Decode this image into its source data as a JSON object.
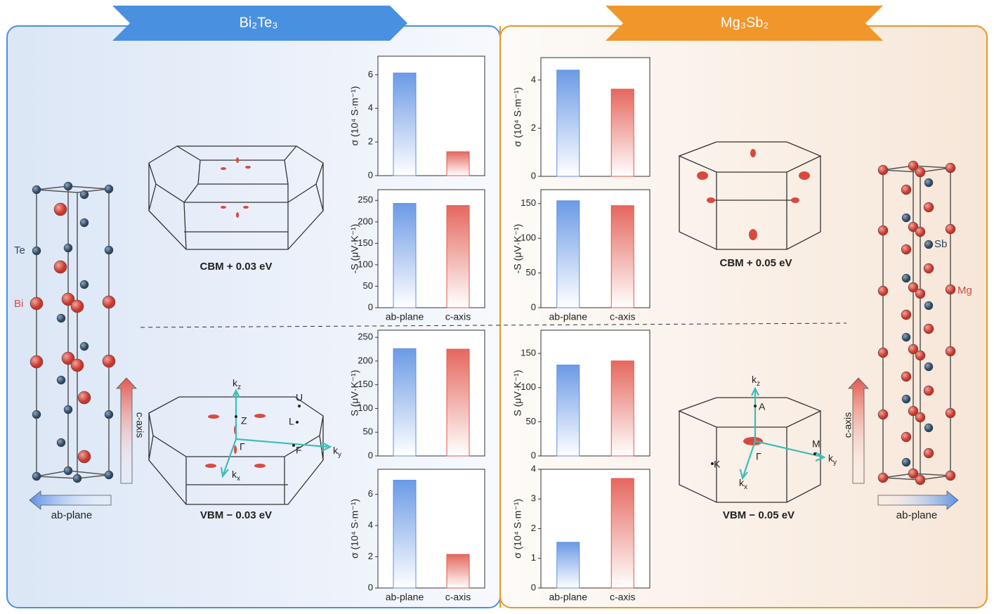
{
  "bi2te3": {
    "title": "Bi₂Te₃",
    "atom_labels": [
      "Te",
      "Bi"
    ],
    "c_axis": "c-axis",
    "ab_plane": "ab-plane",
    "cbm": "CBM + 0.03 eV",
    "vbm": "VBM − 0.03 eV",
    "bz_points": [
      "Z",
      "U",
      "L",
      "Γ",
      "F"
    ],
    "k_axes": [
      {
        "base": "k",
        "sub": "z"
      },
      {
        "base": "k",
        "sub": "y"
      },
      {
        "base": "k",
        "sub": "x"
      }
    ]
  },
  "mg3sb2": {
    "title": "Mg₃Sb₂",
    "atom_labels": [
      "Sb",
      "Mg"
    ],
    "c_axis": "c-axis",
    "ab_plane": "ab-plane",
    "cbm": "CBM + 0.05 eV",
    "vbm": "VBM − 0.05 eV",
    "bz_points": [
      "A",
      "M",
      "Γ",
      "K"
    ],
    "k_axes": [
      {
        "base": "k",
        "sub": "z"
      },
      {
        "base": "k",
        "sub": "y"
      },
      {
        "base": "k",
        "sub": "x"
      }
    ]
  },
  "chart_data": [
    {
      "type": "bar",
      "ylabel": "σ (10⁴ S·m⁻¹)",
      "categories": [
        null,
        null
      ],
      "values": [
        6.1,
        1.42
      ],
      "colors": [
        "#5b8fe3",
        "#e2574c"
      ],
      "ylim": [
        0,
        7.1
      ],
      "yticks": [
        0,
        2,
        4,
        6
      ]
    },
    {
      "type": "bar",
      "ylabel": "-S (μV·K⁻¹)",
      "categories": [
        "ab-plane",
        "c-axis"
      ],
      "values": [
        243,
        238
      ],
      "colors": [
        "#5b8fe3",
        "#e2574c"
      ],
      "ylim": [
        0,
        275
      ],
      "yticks": [
        0,
        50,
        100,
        150,
        200,
        250
      ]
    },
    {
      "type": "bar",
      "ylabel": "S (μV·K⁻¹)",
      "categories": [
        null,
        null
      ],
      "values": [
        226,
        225
      ],
      "colors": [
        "#5b8fe3",
        "#e2574c"
      ],
      "ylim": [
        0,
        265
      ],
      "yticks": [
        0,
        50,
        100,
        150,
        200,
        250
      ]
    },
    {
      "type": "bar",
      "ylabel": "σ (10⁴ S·m⁻¹)",
      "categories": [
        "ab-plane",
        "c-axis"
      ],
      "values": [
        6.9,
        2.15
      ],
      "colors": [
        "#5b8fe3",
        "#e2574c"
      ],
      "ylim": [
        0,
        7.6
      ],
      "yticks": [
        0,
        2,
        4,
        6
      ]
    },
    {
      "type": "bar",
      "ylabel": "σ (10⁴ S·m⁻¹)",
      "categories": [
        null,
        null
      ],
      "values": [
        4.41,
        3.62
      ],
      "colors": [
        "#5b8fe3",
        "#e2574c"
      ],
      "ylim": [
        0,
        4.93
      ],
      "yticks": [
        0,
        2,
        4
      ]
    },
    {
      "type": "bar",
      "ylabel": "-S (μV·K⁻¹)",
      "categories": [
        "ab-plane",
        "c-axis"
      ],
      "values": [
        154,
        147
      ],
      "colors": [
        "#5b8fe3",
        "#e2574c"
      ],
      "ylim": [
        0,
        170
      ],
      "yticks": [
        0,
        50,
        100,
        150
      ]
    },
    {
      "type": "bar",
      "ylabel": "S (μV·K⁻¹)",
      "categories": [
        null,
        null
      ],
      "values": [
        133,
        139
      ],
      "colors": [
        "#5b8fe3",
        "#e2574c"
      ],
      "ylim": [
        0,
        184
      ],
      "yticks": [
        0,
        50,
        100,
        150
      ]
    },
    {
      "type": "bar",
      "ylabel": "σ (10⁴ S·m⁻¹)",
      "categories": [
        "ab-plane",
        "c-axis"
      ],
      "values": [
        1.54,
        3.69
      ],
      "colors": [
        "#5b8fe3",
        "#e2574c"
      ],
      "ylim": [
        0,
        4
      ],
      "yticks": [
        0,
        1,
        2,
        3,
        4
      ]
    }
  ]
}
